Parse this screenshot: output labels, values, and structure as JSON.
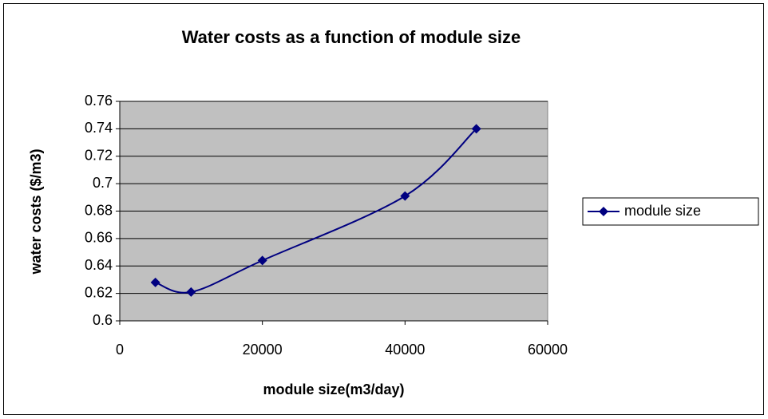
{
  "chart_data": {
    "type": "line",
    "title": "Water costs as a function of module size",
    "xlabel": "module size(m3/day)",
    "ylabel": "water costs ($/m3)",
    "x": [
      5000,
      10000,
      20000,
      40000,
      50000
    ],
    "series": [
      {
        "name": "module size",
        "color": "#000080",
        "values": [
          0.628,
          0.621,
          0.644,
          0.691,
          0.74
        ]
      }
    ],
    "xlim": [
      0,
      60000
    ],
    "xticks": [
      0,
      20000,
      40000,
      60000
    ],
    "ylim": [
      0.6,
      0.76
    ],
    "yticks": [
      0.6,
      0.62,
      0.64,
      0.66,
      0.68,
      0.7,
      0.72,
      0.74,
      0.76
    ],
    "grid": true,
    "smooth": true,
    "legend": "right",
    "plot_background": "#c0c0c0"
  }
}
